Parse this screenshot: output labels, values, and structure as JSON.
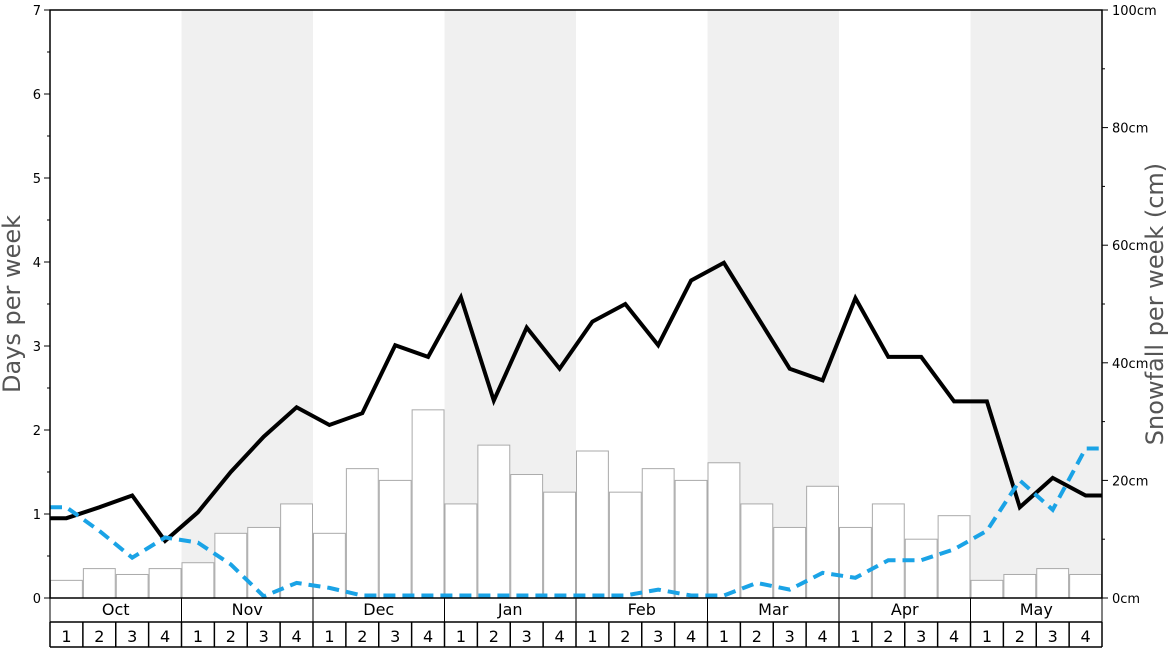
{
  "chart_data": {
    "type": "bar+line",
    "title": "",
    "ylabel_left": "Days per week",
    "ylabel_right": "Snowfall per week (cm)",
    "ylim_left": [
      0,
      7
    ],
    "ylim_right": [
      0,
      100
    ],
    "yticks_left": [
      "0",
      "1",
      "2",
      "3",
      "4",
      "5",
      "6",
      "7"
    ],
    "yticks_right": [
      "0cm",
      "20cm",
      "40cm",
      "60cm",
      "80cm",
      "100cm"
    ],
    "months": [
      "Oct",
      "Nov",
      "Dec",
      "Jan",
      "Feb",
      "Mar",
      "Apr",
      "May"
    ],
    "weeks": [
      "1",
      "2",
      "3",
      "4"
    ],
    "colors": {
      "bars_fill": "#ffffff",
      "bars_stroke": "#aaaaaa",
      "line_solid": "#000000",
      "line_dashed": "#1aa3e6",
      "band_shade": "#f0f0f0"
    },
    "series": [
      {
        "type": "bar",
        "axis": "right",
        "values": [
          3,
          5,
          4,
          5,
          6,
          11,
          12,
          16,
          11,
          22,
          20,
          32,
          16,
          26,
          21,
          18,
          25,
          18,
          22,
          20,
          23,
          16,
          12,
          19,
          12,
          16,
          10,
          14,
          3,
          4,
          5,
          4
        ]
      },
      {
        "type": "line",
        "style": "solid",
        "axis": "left",
        "values": [
          0.95,
          1.08,
          1.22,
          0.68,
          1.02,
          1.5,
          1.92,
          2.27,
          2.06,
          2.2,
          3.01,
          2.87,
          3.58,
          2.35,
          3.22,
          2.73,
          3.29,
          3.5,
          3.01,
          3.78,
          3.99,
          3.36,
          2.73,
          2.59,
          3.57,
          2.87,
          2.87,
          2.34,
          2.34,
          1.08,
          1.43,
          1.22
        ]
      },
      {
        "type": "line",
        "style": "dashed",
        "axis": "left",
        "values": [
          1.08,
          0.8,
          0.48,
          0.72,
          0.66,
          0.4,
          0.02,
          0.18,
          0.12,
          0.03,
          0.03,
          0.03,
          0.03,
          0.03,
          0.03,
          0.03,
          0.03,
          0.03,
          0.1,
          0.03,
          0.03,
          0.18,
          0.1,
          0.3,
          0.24,
          0.45,
          0.45,
          0.58,
          0.8,
          1.4,
          1.05,
          1.78
        ]
      }
    ]
  }
}
